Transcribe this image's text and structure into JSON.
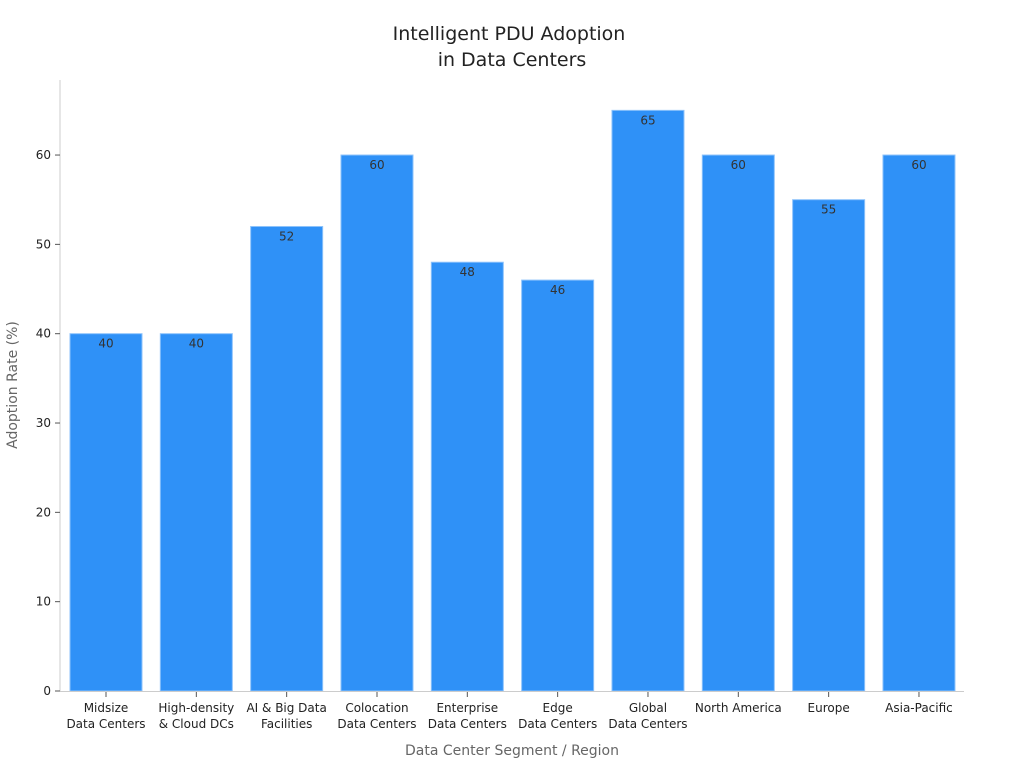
{
  "chart_data": {
    "type": "bar",
    "title": [
      "Intelligent PDU Adoption",
      "in Data Centers"
    ],
    "xlabel": "Data Center Segment / Region",
    "ylabel": "Adoption Rate (%)",
    "categories": [
      [
        "Midsize",
        "Data Centers"
      ],
      [
        "High-density",
        "& Cloud DCs"
      ],
      [
        "AI & Big Data",
        "Facilities"
      ],
      [
        "Colocation",
        "Data Centers"
      ],
      [
        "Enterprise",
        "Data Centers"
      ],
      [
        "Edge",
        "Data Centers"
      ],
      [
        "Global",
        "Data Centers"
      ],
      [
        "North America"
      ],
      [
        "Europe"
      ],
      [
        "Asia-Pacific"
      ]
    ],
    "values": [
      40,
      40,
      52,
      60,
      48,
      46,
      65,
      60,
      55,
      60
    ],
    "yticks": [
      0,
      10,
      20,
      30,
      40,
      50,
      60
    ],
    "ylim": [
      0,
      68.4
    ],
    "grid": false,
    "bar_color": "#2f91f7",
    "data_labels": true
  }
}
